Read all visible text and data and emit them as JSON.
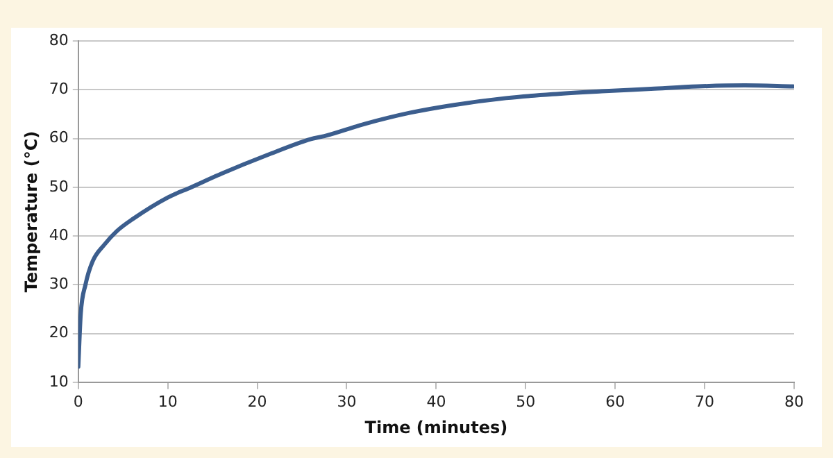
{
  "chart_data": {
    "type": "line",
    "xlabel": "Time (minutes)",
    "ylabel": "Temperature (°C)",
    "x": [
      0,
      0.27,
      0.8,
      1.6,
      2.9,
      4.3,
      6.1,
      10,
      12.6,
      16,
      21.1,
      26,
      27.5,
      32,
      37.1,
      42,
      47.8,
      53,
      58.5,
      64,
      69.2,
      74.5,
      79.9
    ],
    "series": [
      {
        "color": "#3c5e8e",
        "values": [
          13.2,
          24,
          30,
          34.8,
          38.2,
          41,
          43.5,
          47.9,
          50,
          52.8,
          56.6,
          59.9,
          60.5,
          63,
          65.3,
          66.9,
          68.3,
          69.1,
          69.7,
          70.2,
          70.7,
          70.9,
          70.7
        ]
      }
    ],
    "xlim": [
      0,
      80
    ],
    "xticks": [
      0,
      10,
      20,
      30,
      40,
      50,
      60,
      70,
      80
    ],
    "ylim": [
      10,
      80
    ],
    "yticks": [
      10,
      20,
      30,
      40,
      50,
      60,
      70,
      80
    ],
    "grid": "y",
    "legend": false,
    "marker": "none",
    "line_style": "solid"
  }
}
